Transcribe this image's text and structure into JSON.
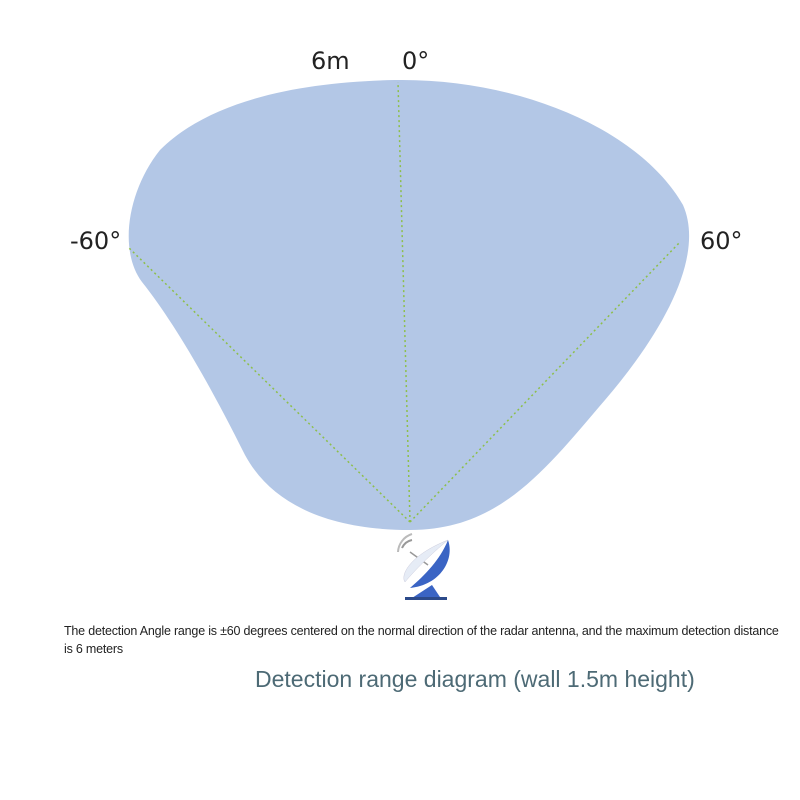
{
  "labels": {
    "distance": "6m",
    "angle_center": "0°",
    "angle_left": "-60°",
    "angle_right": "60°"
  },
  "description": "The detection Angle range is ±60 degrees centered on the normal direction of the radar antenna, and the maximum detection distance is 6 meters",
  "title": "Detection range diagram (wall 1.5m height)",
  "icons": {
    "radar": "radar-dish-icon"
  },
  "colors": {
    "range_fill": "#b3c7e6",
    "guide_lines": "#8dbf4a",
    "dish": "#3a64c4"
  }
}
